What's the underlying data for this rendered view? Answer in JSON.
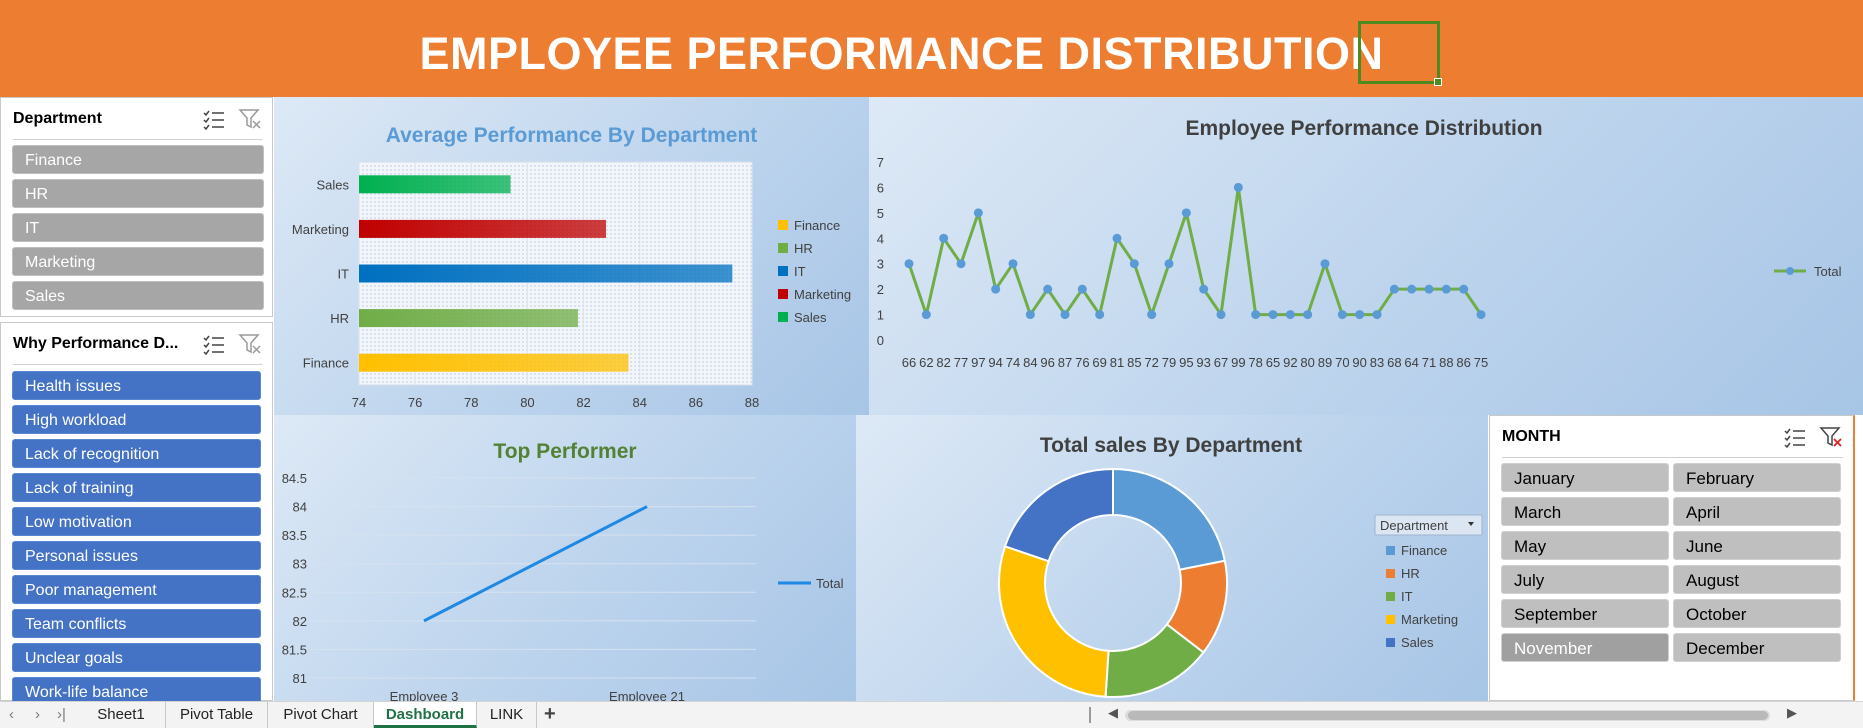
{
  "banner": {
    "title": "EMPLOYEE PERFORMANCE DISTRIBUTION"
  },
  "slicers": {
    "department": {
      "title": "Department",
      "items": [
        "Finance",
        "HR",
        "IT",
        "Marketing",
        "Sales"
      ]
    },
    "why": {
      "title": "Why Performance D...",
      "items": [
        "Health issues",
        "High workload",
        "Lack of recognition",
        "Lack of training",
        "Low motivation",
        "Personal issues",
        "Poor management",
        "Team conflicts",
        "Unclear goals",
        "Work-life balance"
      ]
    },
    "month": {
      "title": "MONTH",
      "items": [
        "January",
        "February",
        "March",
        "April",
        "May",
        "June",
        "July",
        "August",
        "September",
        "October",
        "November",
        "December"
      ],
      "dimmed": [
        "November"
      ]
    }
  },
  "icons": {
    "multi_select": "multi-select-icon",
    "clear_filter": "clear-filter-icon"
  },
  "tabs": {
    "items": [
      "Sheet1",
      "Pivot Table",
      "Pivot Chart",
      "Dashboard",
      "LINK"
    ],
    "active": "Dashboard"
  },
  "chart_data": [
    {
      "type": "bar",
      "title": "Average Performance By Department",
      "categories": [
        "Finance",
        "HR",
        "IT",
        "Marketing",
        "Sales"
      ],
      "values": [
        83.6,
        81.8,
        87.3,
        82.8,
        79.4
      ],
      "xlim": [
        74,
        88
      ],
      "xticks": [
        74,
        76,
        78,
        80,
        82,
        84,
        86,
        88
      ],
      "legend": [
        "Finance",
        "HR",
        "IT",
        "Marketing",
        "Sales"
      ],
      "legend_position": "right",
      "colors": [
        "#ffc000",
        "#70ad47",
        "#0070c0",
        "#c00000",
        "#00b050"
      ]
    },
    {
      "type": "line",
      "title": "Employee Performance Distribution",
      "x": [
        "66",
        "62",
        "82",
        "77",
        "97",
        "94",
        "74",
        "84",
        "96",
        "87",
        "76",
        "69",
        "81",
        "85",
        "72",
        "79",
        "95",
        "93",
        "67",
        "99",
        "78",
        "65",
        "92",
        "80",
        "89",
        "70",
        "90",
        "83",
        "68",
        "64",
        "71",
        "88",
        "86",
        "75"
      ],
      "series": [
        {
          "name": "Total",
          "values": [
            3,
            1,
            4,
            3,
            5,
            2,
            3,
            1,
            2,
            1,
            2,
            1,
            4,
            3,
            1,
            3,
            5,
            2,
            1,
            6,
            1,
            1,
            1,
            1,
            3,
            1,
            1,
            1,
            2,
            2,
            2,
            2,
            2,
            1
          ]
        }
      ],
      "ylim": [
        0,
        7
      ],
      "yticks": [
        0,
        1,
        2,
        3,
        4,
        5,
        6,
        7
      ],
      "legend_position": "right",
      "color": "#70ad47",
      "marker_color": "#5b9bd5"
    },
    {
      "type": "line",
      "title": "Top Performer",
      "x": [
        "Employee 3",
        "Employee 21"
      ],
      "series": [
        {
          "name": "Total",
          "values": [
            82,
            84
          ]
        }
      ],
      "ylim": [
        81,
        84.5
      ],
      "yticks": [
        "81",
        "81.5",
        "82",
        "82.5",
        "83",
        "83.5",
        "84",
        "84.5"
      ],
      "legend_position": "right",
      "color": "#1e88e5"
    },
    {
      "type": "pie",
      "title": "Total sales By Department",
      "legend_title": "Department",
      "categories": [
        "Finance",
        "HR",
        "IT",
        "Marketing",
        "Sales"
      ],
      "values": [
        21,
        13,
        15,
        28,
        19
      ],
      "legend_position": "right",
      "colors": [
        "#5b9bd5",
        "#ed7d31",
        "#70ad47",
        "#ffc000",
        "#4472c4"
      ]
    }
  ]
}
